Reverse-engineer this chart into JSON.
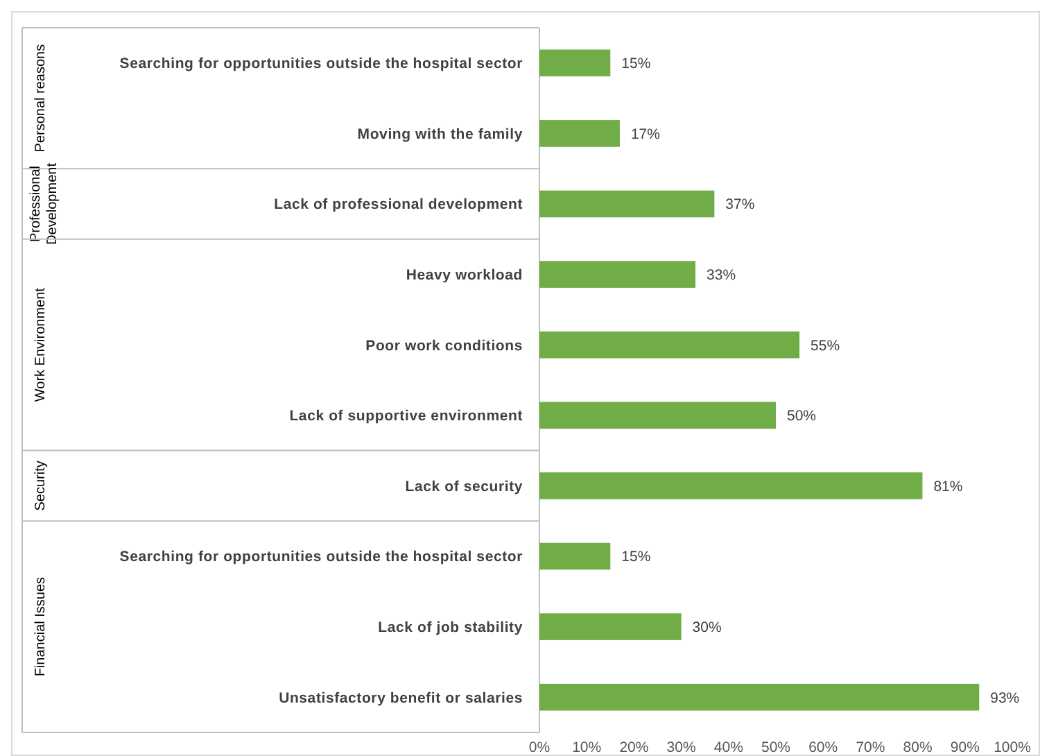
{
  "chart_data": {
    "type": "bar",
    "orientation": "horizontal",
    "categories": [
      "Searching for opportunities outside the hospital sector",
      "Moving with the family",
      "Lack of professional development",
      "Heavy workload",
      "Poor work conditions",
      "Lack of supportive environment",
      "Lack of security",
      "Searching for opportunities outside the hospital sector",
      "Lack of job stability",
      "Unsatisfactory benefit or salaries"
    ],
    "values": [
      15,
      17,
      37,
      33,
      55,
      50,
      81,
      15,
      30,
      93
    ],
    "value_labels": [
      "15%",
      "17%",
      "37%",
      "33%",
      "55%",
      "50%",
      "81%",
      "15%",
      "30%",
      "93%"
    ],
    "color": "#70ad47",
    "xlim": [
      0,
      100
    ],
    "xticks": [
      {
        "value": 0,
        "label": "0%"
      },
      {
        "value": 10,
        "label": "10%"
      },
      {
        "value": 20,
        "label": "20%"
      },
      {
        "value": 30,
        "label": "30%"
      },
      {
        "value": 40,
        "label": "40%"
      },
      {
        "value": 50,
        "label": "50%"
      },
      {
        "value": 60,
        "label": "60%"
      },
      {
        "value": 70,
        "label": "70%"
      },
      {
        "value": 80,
        "label": "80%"
      },
      {
        "value": 90,
        "label": "90%"
      },
      {
        "value": 100,
        "label": "100%"
      }
    ],
    "annotations": [
      "Personal reasons",
      "Professional Development",
      "Work Environment",
      "Security",
      "Financial Issues"
    ],
    "grid": false
  }
}
